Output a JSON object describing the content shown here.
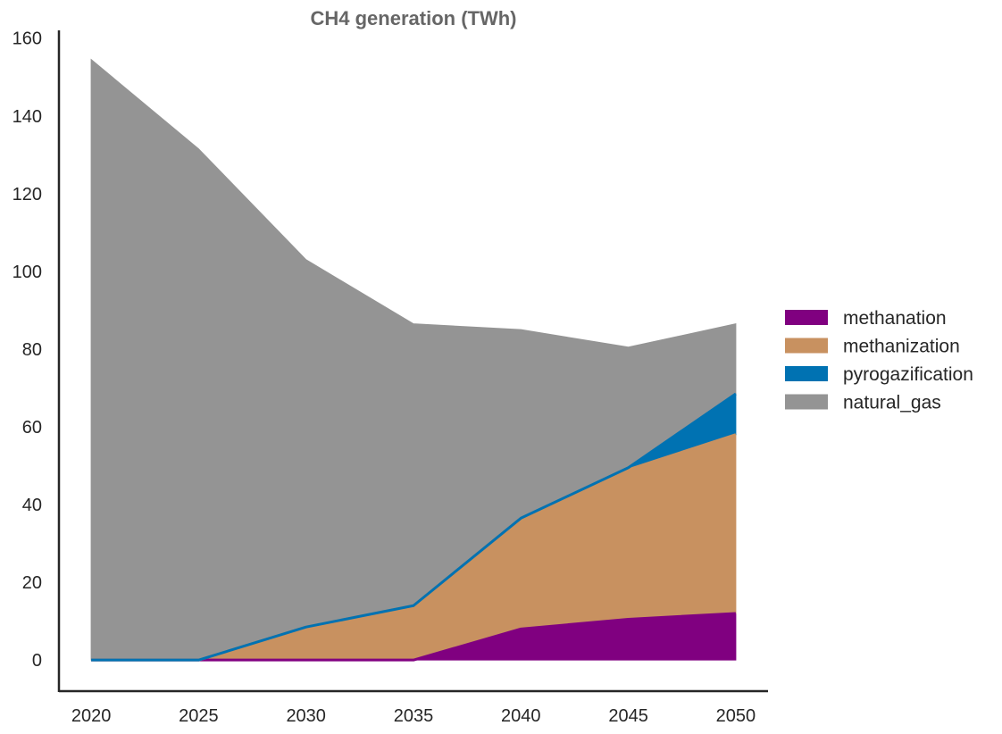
{
  "chart_data": {
    "type": "area",
    "stacked": true,
    "title": "CH4 generation (TWh)",
    "xlabel": "",
    "ylabel": "",
    "x": [
      2020,
      2025,
      2030,
      2035,
      2040,
      2045,
      2050
    ],
    "x_ticks": [
      "2020",
      "2025",
      "2030",
      "2035",
      "2040",
      "2045",
      "2050"
    ],
    "y_ticks": [
      "0",
      "20",
      "40",
      "60",
      "80",
      "100",
      "120",
      "140",
      "160"
    ],
    "ylim": [
      -8,
      162
    ],
    "xlim": [
      2018.5,
      2051.5
    ],
    "grid": false,
    "legend_position": "right",
    "series": [
      {
        "name": "methanation",
        "color": "#800080",
        "values": [
          0,
          0,
          0,
          0,
          8,
          10.5,
          12
        ]
      },
      {
        "name": "methanization",
        "color": "#C89160",
        "values": [
          0,
          0,
          8.5,
          14,
          28.5,
          38.5,
          46
        ]
      },
      {
        "name": "pyrogazification",
        "color": "#0072B2",
        "values": [
          0,
          0,
          0,
          0,
          0,
          0.5,
          10.5
        ]
      },
      {
        "name": "natural_gas",
        "color": "#949494",
        "values": [
          154.5,
          131.5,
          94.5,
          72.5,
          48.5,
          31,
          18
        ]
      }
    ]
  }
}
